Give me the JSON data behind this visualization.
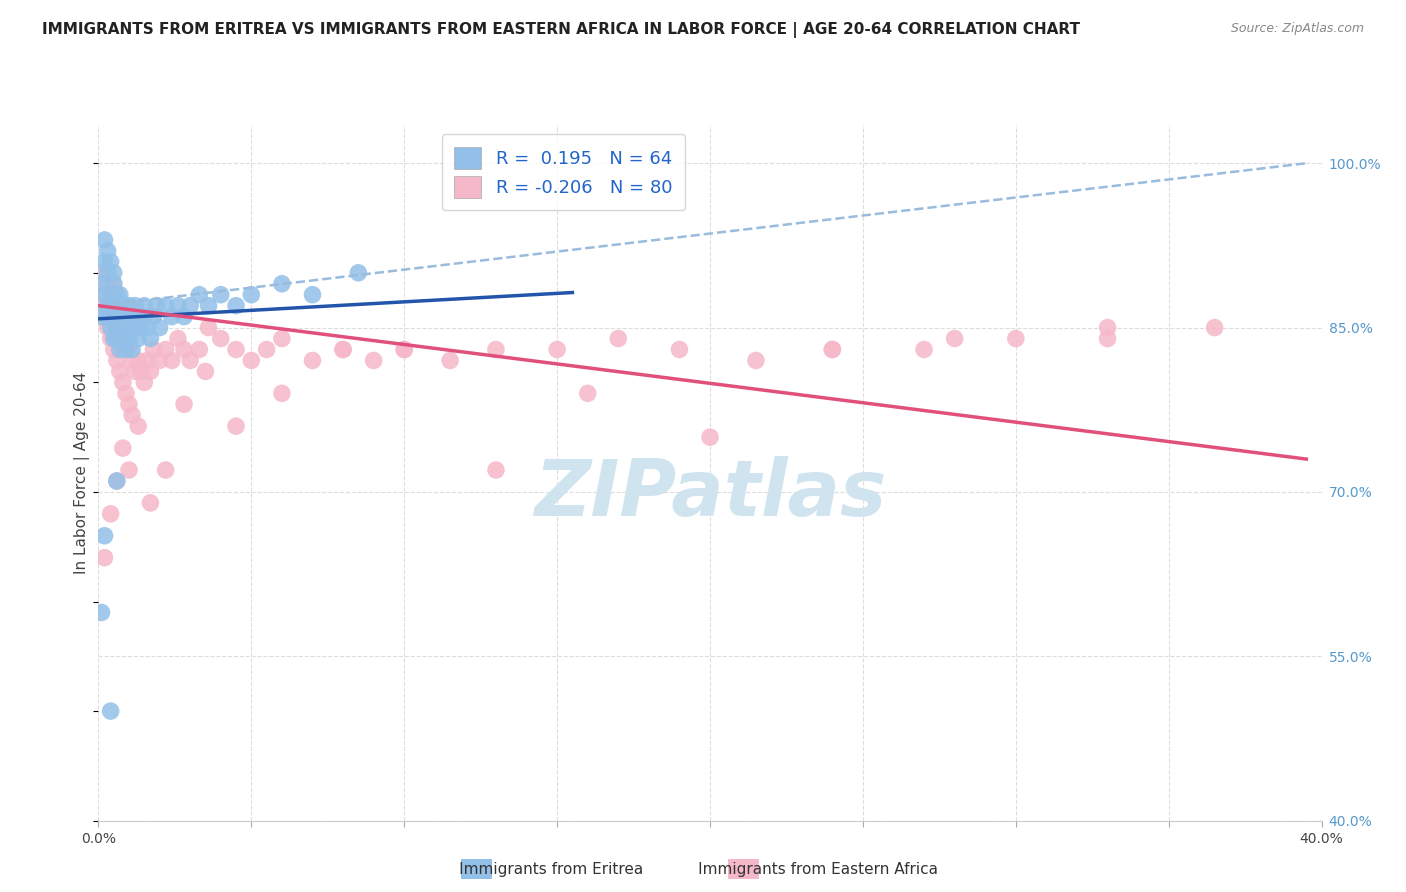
{
  "title": "IMMIGRANTS FROM ERITREA VS IMMIGRANTS FROM EASTERN AFRICA IN LABOR FORCE | AGE 20-64 CORRELATION CHART",
  "source": "Source: ZipAtlas.com",
  "ylabel": "In Labor Force | Age 20-64",
  "xlim": [
    0.0,
    0.4
  ],
  "ylim": [
    0.4,
    1.035
  ],
  "xticks": [
    0.0,
    0.05,
    0.1,
    0.15,
    0.2,
    0.25,
    0.3,
    0.35,
    0.4
  ],
  "xticklabels": [
    "0.0%",
    "",
    "",
    "",
    "",
    "",
    "",
    "",
    "40.0%"
  ],
  "yticks_right": [
    0.4,
    0.55,
    0.7,
    0.85,
    1.0
  ],
  "yticklabels_right": [
    "40.0%",
    "55.0%",
    "70.0%",
    "85.0%",
    "100.0%"
  ],
  "legend_blue_r": "0.195",
  "legend_blue_n": "64",
  "legend_pink_r": "-0.206",
  "legend_pink_n": "80",
  "blue_color": "#92c0e8",
  "pink_color": "#f5b8c8",
  "trend_blue_color": "#2255aa",
  "trend_pink_color": "#e0507a",
  "dashed_color": "#99bbdd",
  "background_color": "#ffffff",
  "grid_color": "#dddddd",
  "watermark_color": "#d0e4f0",
  "title_fontsize": 11,
  "axis_label_fontsize": 11,
  "tick_fontsize": 10,
  "blue_scatter_x": [
    0.001,
    0.001,
    0.002,
    0.002,
    0.002,
    0.003,
    0.003,
    0.003,
    0.003,
    0.004,
    0.004,
    0.004,
    0.004,
    0.005,
    0.005,
    0.005,
    0.005,
    0.005,
    0.006,
    0.006,
    0.006,
    0.006,
    0.007,
    0.007,
    0.007,
    0.008,
    0.008,
    0.008,
    0.009,
    0.009,
    0.01,
    0.01,
    0.01,
    0.011,
    0.011,
    0.012,
    0.012,
    0.013,
    0.013,
    0.014,
    0.015,
    0.015,
    0.016,
    0.017,
    0.018,
    0.019,
    0.02,
    0.022,
    0.024,
    0.026,
    0.028,
    0.03,
    0.033,
    0.036,
    0.04,
    0.045,
    0.05,
    0.06,
    0.07,
    0.085,
    0.001,
    0.002,
    0.004,
    0.006
  ],
  "blue_scatter_y": [
    0.86,
    0.89,
    0.91,
    0.93,
    0.88,
    0.87,
    0.9,
    0.92,
    0.86,
    0.88,
    0.91,
    0.87,
    0.85,
    0.84,
    0.88,
    0.9,
    0.86,
    0.89,
    0.85,
    0.88,
    0.84,
    0.87,
    0.86,
    0.83,
    0.88,
    0.85,
    0.87,
    0.84,
    0.83,
    0.86,
    0.84,
    0.87,
    0.85,
    0.86,
    0.83,
    0.85,
    0.87,
    0.84,
    0.86,
    0.85,
    0.86,
    0.87,
    0.85,
    0.84,
    0.86,
    0.87,
    0.85,
    0.87,
    0.86,
    0.87,
    0.86,
    0.87,
    0.88,
    0.87,
    0.88,
    0.87,
    0.88,
    0.89,
    0.88,
    0.9,
    0.59,
    0.66,
    0.5,
    0.71
  ],
  "pink_scatter_x": [
    0.001,
    0.001,
    0.002,
    0.002,
    0.003,
    0.003,
    0.003,
    0.004,
    0.004,
    0.005,
    0.005,
    0.005,
    0.006,
    0.006,
    0.006,
    0.007,
    0.007,
    0.008,
    0.008,
    0.009,
    0.009,
    0.01,
    0.01,
    0.011,
    0.011,
    0.012,
    0.013,
    0.014,
    0.015,
    0.016,
    0.017,
    0.018,
    0.02,
    0.022,
    0.024,
    0.026,
    0.028,
    0.03,
    0.033,
    0.036,
    0.04,
    0.045,
    0.05,
    0.055,
    0.06,
    0.07,
    0.08,
    0.09,
    0.1,
    0.115,
    0.13,
    0.15,
    0.17,
    0.19,
    0.215,
    0.24,
    0.27,
    0.3,
    0.33,
    0.365,
    0.002,
    0.004,
    0.006,
    0.008,
    0.01,
    0.013,
    0.017,
    0.022,
    0.028,
    0.035,
    0.045,
    0.06,
    0.08,
    0.1,
    0.13,
    0.16,
    0.2,
    0.24,
    0.28,
    0.33
  ],
  "pink_scatter_y": [
    0.87,
    0.9,
    0.88,
    0.86,
    0.89,
    0.85,
    0.87,
    0.84,
    0.88,
    0.83,
    0.86,
    0.89,
    0.82,
    0.86,
    0.84,
    0.81,
    0.85,
    0.8,
    0.84,
    0.79,
    0.83,
    0.78,
    0.83,
    0.77,
    0.82,
    0.81,
    0.82,
    0.81,
    0.8,
    0.82,
    0.81,
    0.83,
    0.82,
    0.83,
    0.82,
    0.84,
    0.83,
    0.82,
    0.83,
    0.85,
    0.84,
    0.83,
    0.82,
    0.83,
    0.84,
    0.82,
    0.83,
    0.82,
    0.83,
    0.82,
    0.83,
    0.83,
    0.84,
    0.83,
    0.82,
    0.83,
    0.83,
    0.84,
    0.84,
    0.85,
    0.64,
    0.68,
    0.71,
    0.74,
    0.72,
    0.76,
    0.69,
    0.72,
    0.78,
    0.81,
    0.76,
    0.79,
    0.83,
    0.83,
    0.72,
    0.79,
    0.75,
    0.83,
    0.84,
    0.85
  ],
  "blue_trend_x": [
    0.0,
    0.155
  ],
  "blue_trend_y": [
    0.858,
    0.882
  ],
  "pink_trend_x": [
    0.0,
    0.395
  ],
  "pink_trend_y": [
    0.87,
    0.73
  ],
  "dashed_trend_x": [
    0.0,
    0.395
  ],
  "dashed_trend_y": [
    0.87,
    1.0
  ]
}
